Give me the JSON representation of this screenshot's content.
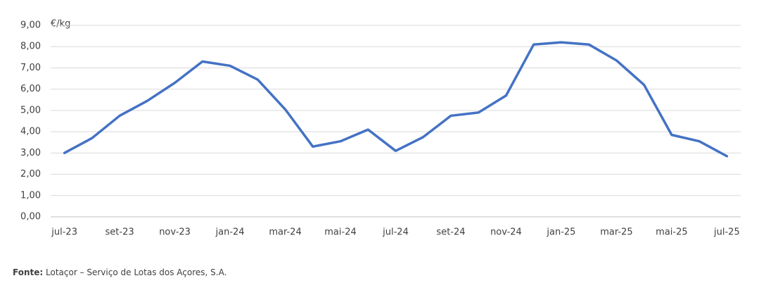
{
  "chart_data": {
    "type": "line",
    "y_unit_label": "€/kg",
    "categories": [
      "jul-23",
      null,
      "set-23",
      null,
      "nov-23",
      null,
      "jan-24",
      null,
      "mar-24",
      null,
      "mai-24",
      null,
      "jul-24",
      null,
      "set-24",
      null,
      "nov-24",
      null,
      "jan-25",
      null,
      "mar-25",
      null,
      "mai-25",
      null,
      "jul-25"
    ],
    "values": [
      3.0,
      3.7,
      4.75,
      5.45,
      6.3,
      7.3,
      7.1,
      6.45,
      5.05,
      3.3,
      3.55,
      4.1,
      3.1,
      3.75,
      4.75,
      4.9,
      5.7,
      8.1,
      8.2,
      8.1,
      7.35,
      6.2,
      3.85,
      3.55,
      2.85
    ],
    "color": "#4472c4",
    "ylim": [
      0,
      9
    ],
    "yticks": [
      {
        "value": 0,
        "label": "0,00"
      },
      {
        "value": 1,
        "label": "1,00"
      },
      {
        "value": 2,
        "label": "2,00"
      },
      {
        "value": 3,
        "label": "3,00"
      },
      {
        "value": 4,
        "label": "4,00"
      },
      {
        "value": 5,
        "label": "5,00"
      },
      {
        "value": 6,
        "label": "6,00"
      },
      {
        "value": 7,
        "label": "7,00"
      },
      {
        "value": 8,
        "label": "8,00"
      },
      {
        "value": 9,
        "label": "9,00"
      }
    ],
    "grid": true
  },
  "source_label": "Fonte:",
  "source": "Lotaçor – Serviço de Lotas dos Açores, S.A."
}
